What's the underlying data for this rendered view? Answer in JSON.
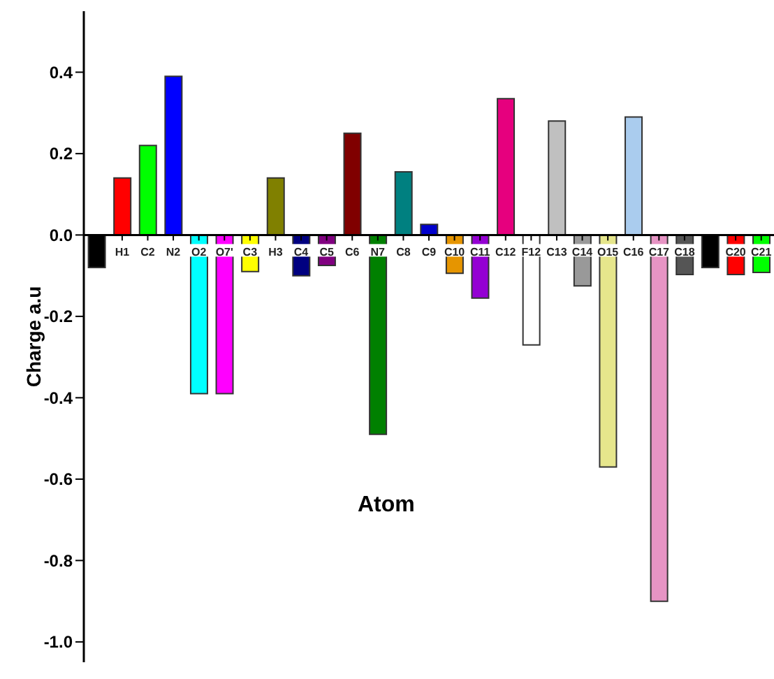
{
  "chart_data": {
    "type": "bar",
    "xlabel": "Atom",
    "ylabel": "Charge a.u",
    "categories": [
      null,
      "H1",
      "C2",
      "N2",
      "O2",
      "O7'",
      "C3",
      "H3",
      "C4",
      "C5",
      "C6",
      "N7",
      "C8",
      "C9",
      "C10",
      "C11",
      "C12",
      "F12",
      "C13",
      "C14",
      "O15",
      "C16",
      "C17",
      "C18",
      null,
      "C20",
      "C21"
    ],
    "values": [
      -0.08,
      0.14,
      0.22,
      0.39,
      -0.39,
      -0.39,
      -0.09,
      0.14,
      -0.1,
      -0.075,
      0.25,
      -0.49,
      0.155,
      0.026,
      -0.094,
      -0.155,
      0.335,
      -0.27,
      0.28,
      -0.125,
      -0.57,
      0.29,
      -0.9,
      -0.097,
      -0.08,
      -0.097,
      -0.092
    ],
    "colors": [
      "#000000",
      "#ff0000",
      "#00ff00",
      "#0000ff",
      "#00ffff",
      "#ff00ff",
      "#ffff00",
      "#808000",
      "#000080",
      "#800080",
      "#800000",
      "#008000",
      "#008080",
      "#0000cc",
      "#e69500",
      "#9400d3",
      "#e6007e",
      "#ffffff",
      "#c0c0c0",
      "#999999",
      "#e6e68c",
      "#aaccee",
      "#e694c4",
      "#555555",
      "#000000",
      "#ff0000",
      "#00ff00"
    ],
    "ylim": [
      -1.05,
      0.55
    ],
    "yticks": [
      {
        "value": -1,
        "label": "-1.0"
      },
      -0.8,
      -0.6,
      -0.4,
      -0.2,
      {
        "value": 0,
        "label": "0.0"
      },
      0.2,
      0.4
    ]
  }
}
